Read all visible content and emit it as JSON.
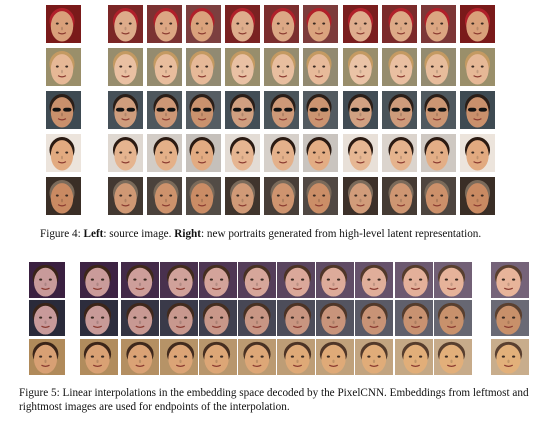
{
  "figure4": {
    "label": "Figure 4:",
    "left_label": "Left",
    "left_text": ": source image. ",
    "right_label": "Right",
    "right_text": ": new portraits generated from high-level latent representation.",
    "rows": [
      {
        "name": "red-hat-man",
        "skin": "#d9a07a",
        "hair": "#b0202a",
        "bg": "#7a1a1a"
      },
      {
        "name": "blond-child",
        "skin": "#e6b896",
        "hair": "#c49a62",
        "bg": "#9a8f6a"
      },
      {
        "name": "sunglasses-man",
        "skin": "#c9906c",
        "hair": "#2a1e18",
        "bg": "#3e4a52"
      },
      {
        "name": "smiling-woman",
        "skin": "#e2aa80",
        "hair": "#2a1a12",
        "bg": "#ece4dc"
      },
      {
        "name": "older-man",
        "skin": "#c98a62",
        "hair": "#7a6a5a",
        "bg": "#3a2e26"
      }
    ]
  },
  "figure5": {
    "label": "Figure 5: Linear interpolations in the embedding space decoded by the PixelCNN. Embeddings from leftmost and rightmost images are used for endpoints of the interpolation.",
    "rows": [
      {
        "name": "woman-to-baby",
        "skin_start": "#c89a9a",
        "skin_end": "#e8b49a",
        "bg": "#3a2040"
      },
      {
        "name": "woman-to-bearded-man",
        "skin_start": "#c89a9a",
        "skin_end": "#c8906a",
        "bg": "#2a2a3a"
      },
      {
        "name": "boy-to-bald-man",
        "skin_start": "#d8a074",
        "skin_end": "#e2b07a",
        "bg": "#b08a5a"
      }
    ]
  }
}
